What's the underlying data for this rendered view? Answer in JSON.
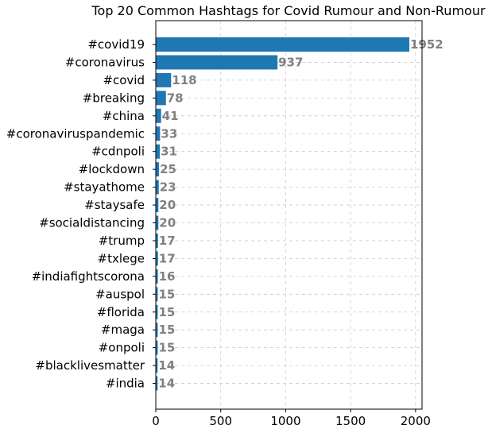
{
  "chart_data": {
    "type": "bar",
    "orientation": "horizontal",
    "title": "Top 20 Common Hashtags for Covid Rumour and Non-Rumour",
    "xlabel": "",
    "ylabel": "",
    "xlim": [
      0,
      2050
    ],
    "xticks": [
      0,
      500,
      1000,
      1500,
      2000
    ],
    "grid": true,
    "bar_color": "#1f77b4",
    "label_color": "#808080",
    "categories": [
      "#covid19",
      "#coronavirus",
      "#covid",
      "#breaking",
      "#china",
      "#coronaviruspandemic",
      "#cdnpoli",
      "#lockdown",
      "#stayathome",
      "#staysafe",
      "#socialdistancing",
      "#trump",
      "#txlege",
      "#indiafightscorona",
      "#auspol",
      "#florida",
      "#maga",
      "#onpoli",
      "#blacklivesmatter",
      "#india"
    ],
    "values": [
      1952,
      937,
      118,
      78,
      41,
      33,
      31,
      25,
      23,
      20,
      20,
      17,
      17,
      16,
      15,
      15,
      15,
      15,
      14,
      14
    ]
  }
}
